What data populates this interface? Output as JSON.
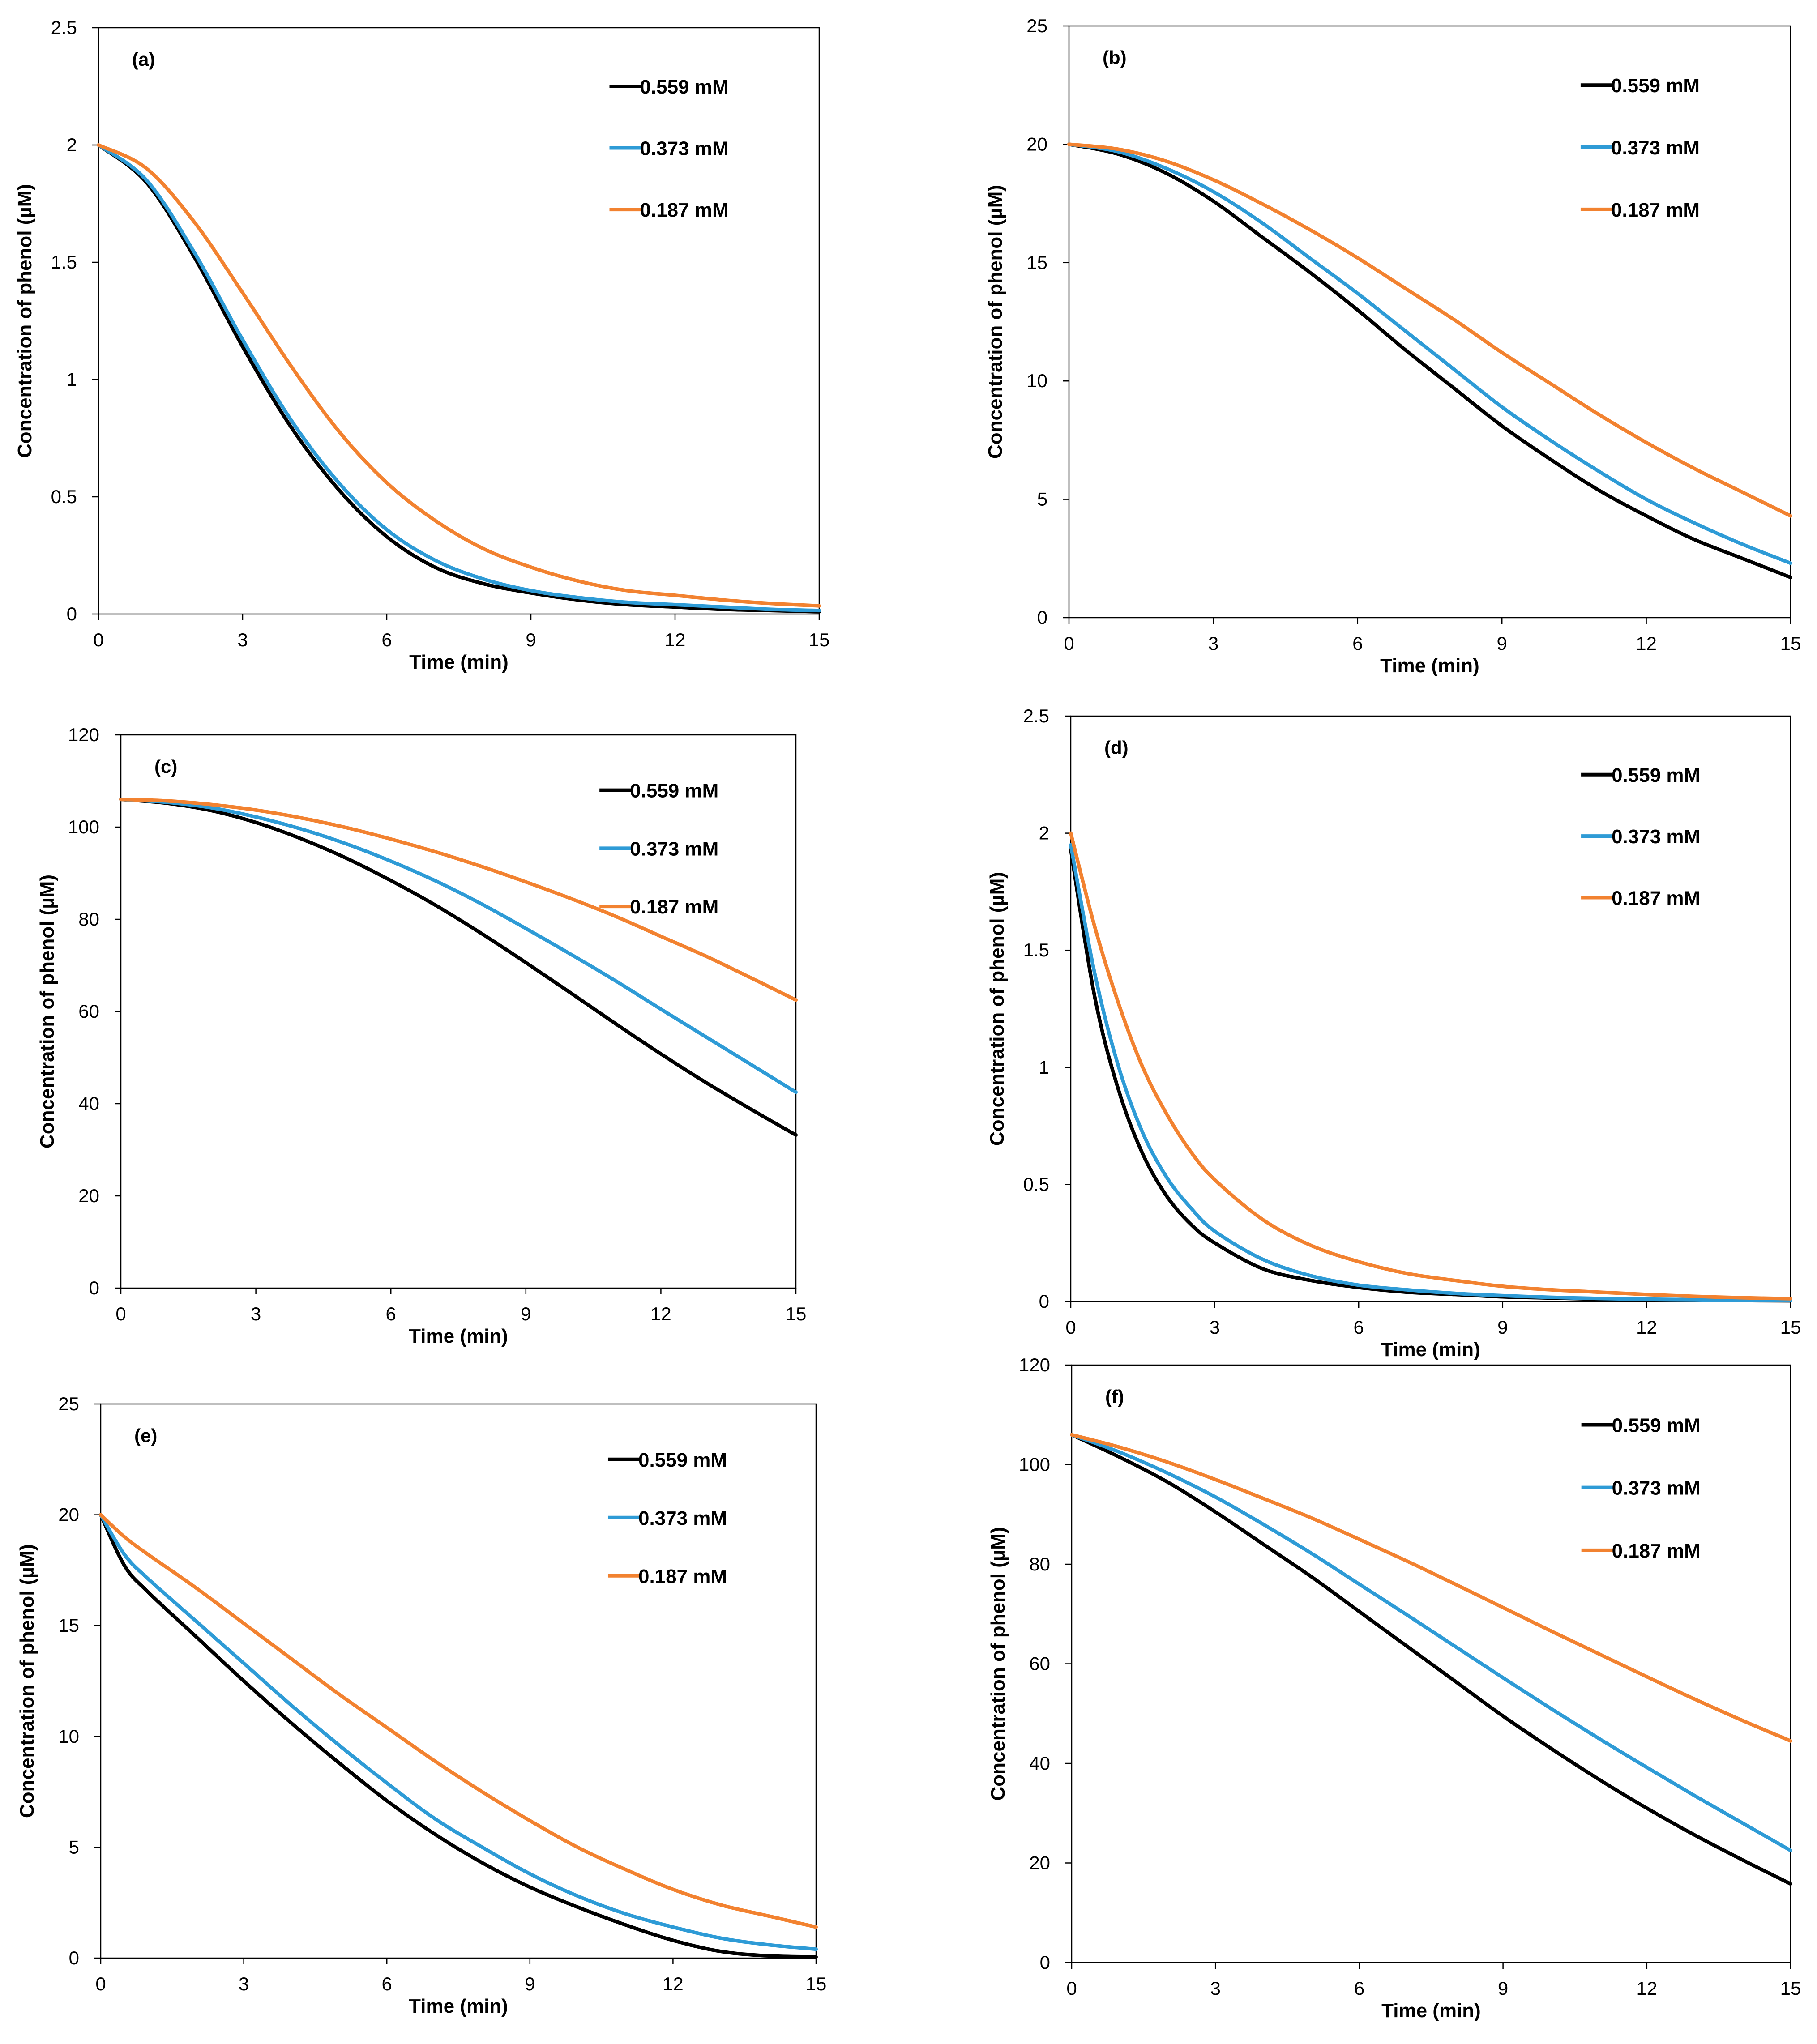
{
  "colors": {
    "black": "#000000",
    "blue": "#2E9BD6",
    "orange": "#F28230"
  },
  "chart_data": [
    {
      "type": "line",
      "panel_label": "(a)",
      "xlabel": "Time (min)",
      "ylabel": "Concentration of phenol (µM)",
      "xlim": [
        0,
        15
      ],
      "ylim": [
        0,
        2.5
      ],
      "xticks": [
        "0",
        "3",
        "6",
        "9",
        "12",
        "15"
      ],
      "yticks": [
        "0",
        "0.5",
        "1",
        "1.5",
        "2",
        "2.5"
      ],
      "legend_position": "top-right",
      "x": [
        0,
        1,
        2,
        3,
        4,
        5,
        6,
        7,
        8,
        9,
        10,
        11,
        12,
        13,
        14,
        15
      ],
      "series": [
        {
          "name": "0.559 mM",
          "color": "#000000",
          "values": [
            2.0,
            1.84,
            1.52,
            1.14,
            0.8,
            0.53,
            0.33,
            0.2,
            0.13,
            0.09,
            0.06,
            0.04,
            0.03,
            0.02,
            0.015,
            0.01
          ]
        },
        {
          "name": "0.373 mM",
          "color": "#2E9BD6",
          "values": [
            2.0,
            1.85,
            1.54,
            1.17,
            0.83,
            0.56,
            0.36,
            0.23,
            0.15,
            0.1,
            0.07,
            0.05,
            0.04,
            0.03,
            0.02,
            0.015
          ]
        },
        {
          "name": "0.187 mM",
          "color": "#F28230",
          "values": [
            2.0,
            1.9,
            1.67,
            1.37,
            1.06,
            0.78,
            0.56,
            0.4,
            0.28,
            0.2,
            0.14,
            0.1,
            0.08,
            0.06,
            0.045,
            0.035
          ]
        }
      ]
    },
    {
      "type": "line",
      "panel_label": "(b)",
      "xlabel": "Time (min)",
      "ylabel": "Concentration of phenol (µM)",
      "xlim": [
        0,
        15
      ],
      "ylim": [
        0,
        25
      ],
      "xticks": [
        "0",
        "3",
        "6",
        "9",
        "12",
        "15"
      ],
      "yticks": [
        "0",
        "5",
        "10",
        "15",
        "20",
        "25"
      ],
      "legend_position": "top-right",
      "x": [
        0,
        1,
        2,
        3,
        4,
        5,
        6,
        7,
        8,
        9,
        10,
        11,
        12,
        13,
        14,
        15
      ],
      "series": [
        {
          "name": "0.559 mM",
          "color": "#000000",
          "values": [
            20.0,
            19.6,
            18.8,
            17.6,
            16.1,
            14.6,
            13.0,
            11.3,
            9.7,
            8.1,
            6.7,
            5.4,
            4.3,
            3.3,
            2.5,
            1.7
          ]
        },
        {
          "name": "0.373 mM",
          "color": "#2E9BD6",
          "values": [
            20.0,
            19.7,
            19.0,
            18.0,
            16.7,
            15.2,
            13.7,
            12.1,
            10.5,
            8.9,
            7.5,
            6.2,
            5.0,
            4.0,
            3.1,
            2.3
          ]
        },
        {
          "name": "0.187 mM",
          "color": "#F28230",
          "values": [
            20.0,
            19.8,
            19.3,
            18.5,
            17.5,
            16.4,
            15.2,
            13.9,
            12.6,
            11.2,
            9.9,
            8.6,
            7.4,
            6.3,
            5.3,
            4.3
          ]
        }
      ]
    },
    {
      "type": "line",
      "panel_label": "(c)",
      "xlabel": "Time (min)",
      "ylabel": "Concentration of phenol (µM)",
      "xlim": [
        0,
        15
      ],
      "ylim": [
        0,
        120
      ],
      "xticks": [
        "0",
        "3",
        "6",
        "9",
        "12",
        "15"
      ],
      "yticks": [
        "0",
        "20",
        "40",
        "60",
        "80",
        "100",
        "120"
      ],
      "legend_position": "top-right",
      "x": [
        0,
        1,
        2,
        3,
        4,
        5,
        6,
        7,
        8,
        9,
        10,
        11,
        12,
        13,
        14,
        15
      ],
      "series": [
        {
          "name": "0.559 mM",
          "color": "#000000",
          "values": [
            106.0,
            105.2,
            103.6,
            101.0,
            97.5,
            93.3,
            88.4,
            83.0,
            77.0,
            70.6,
            64.0,
            57.3,
            50.8,
            44.6,
            38.8,
            33.2
          ]
        },
        {
          "name": "0.373 mM",
          "color": "#2E9BD6",
          "values": [
            106.0,
            105.4,
            104.2,
            102.2,
            99.6,
            96.4,
            92.6,
            88.3,
            83.4,
            78.0,
            72.4,
            66.6,
            60.5,
            54.5,
            48.5,
            42.5
          ]
        },
        {
          "name": "0.187 mM",
          "color": "#F28230",
          "values": [
            106.0,
            105.7,
            104.9,
            103.7,
            102.0,
            99.9,
            97.4,
            94.6,
            91.5,
            88.1,
            84.5,
            80.6,
            76.3,
            72.0,
            67.3,
            62.5
          ]
        }
      ]
    },
    {
      "type": "line",
      "panel_label": "(d)",
      "xlabel": "Time (min)",
      "ylabel": "Concentration of phenol (µM)",
      "xlim": [
        0,
        15
      ],
      "ylim": [
        0,
        2.5
      ],
      "xticks": [
        "0",
        "3",
        "6",
        "9",
        "12",
        "15"
      ],
      "yticks": [
        "0",
        "0.5",
        "1",
        "1.5",
        "2",
        "2.5"
      ],
      "legend_position": "top-right",
      "x": [
        0,
        0.5,
        1,
        1.5,
        2,
        2.5,
        3,
        4,
        5,
        6,
        7,
        8,
        9,
        10,
        11,
        12,
        13,
        14,
        15
      ],
      "series": [
        {
          "name": "0.559 mM",
          "color": "#000000",
          "values": [
            1.93,
            1.3,
            0.9,
            0.63,
            0.45,
            0.33,
            0.25,
            0.14,
            0.09,
            0.06,
            0.04,
            0.03,
            0.02,
            0.015,
            0.01,
            0.007,
            0.005,
            0.004,
            0.003
          ]
        },
        {
          "name": "0.373 mM",
          "color": "#2E9BD6",
          "values": [
            1.95,
            1.4,
            1.0,
            0.72,
            0.53,
            0.4,
            0.3,
            0.18,
            0.11,
            0.07,
            0.05,
            0.035,
            0.025,
            0.018,
            0.013,
            0.01,
            0.008,
            0.006,
            0.005
          ]
        },
        {
          "name": "0.187 mM",
          "color": "#F28230",
          "values": [
            2.0,
            1.6,
            1.27,
            1.0,
            0.8,
            0.64,
            0.52,
            0.35,
            0.24,
            0.17,
            0.12,
            0.09,
            0.065,
            0.05,
            0.04,
            0.03,
            0.022,
            0.016,
            0.012
          ]
        }
      ]
    },
    {
      "type": "line",
      "panel_label": "(e)",
      "xlabel": "Time (min)",
      "ylabel": "Concentration of phenol (µM)",
      "xlim": [
        0,
        15
      ],
      "ylim": [
        0,
        25
      ],
      "xticks": [
        "0",
        "3",
        "6",
        "9",
        "12",
        "15"
      ],
      "yticks": [
        "0",
        "5",
        "10",
        "15",
        "20",
        "25"
      ],
      "legend_position": "top-right",
      "x": [
        0,
        0.5,
        1,
        2,
        3,
        4,
        5,
        6,
        7,
        8,
        9,
        10,
        11,
        12,
        13,
        14,
        15
      ],
      "series": [
        {
          "name": "0.559 mM",
          "color": "#000000",
          "values": [
            20.0,
            17.7,
            16.5,
            14.5,
            12.5,
            10.6,
            8.8,
            7.1,
            5.6,
            4.3,
            3.2,
            2.3,
            1.5,
            0.8,
            0.3,
            0.1,
            0.05
          ]
        },
        {
          "name": "0.373 mM",
          "color": "#2E9BD6",
          "values": [
            20.0,
            18.2,
            17.1,
            15.2,
            13.3,
            11.4,
            9.6,
            7.9,
            6.3,
            5.0,
            3.8,
            2.8,
            2.0,
            1.4,
            0.9,
            0.6,
            0.4
          ]
        },
        {
          "name": "0.187 mM",
          "color": "#F28230",
          "values": [
            20.0,
            19.0,
            18.2,
            16.7,
            15.1,
            13.5,
            11.9,
            10.4,
            8.9,
            7.5,
            6.2,
            5.0,
            4.0,
            3.1,
            2.4,
            1.9,
            1.4
          ]
        }
      ]
    },
    {
      "type": "line",
      "panel_label": "(f)",
      "xlabel": "Time (min)",
      "ylabel": "Concentration of phenol (µM)",
      "xlim": [
        0,
        15
      ],
      "ylim": [
        0,
        120
      ],
      "xticks": [
        "0",
        "3",
        "6",
        "9",
        "12",
        "15"
      ],
      "yticks": [
        "0",
        "20",
        "40",
        "60",
        "80",
        "100",
        "120"
      ],
      "legend_position": "top-right",
      "x": [
        0,
        1,
        2,
        3,
        4,
        5,
        6,
        7,
        8,
        9,
        10,
        11,
        12,
        13,
        14,
        15
      ],
      "series": [
        {
          "name": "0.559 mM",
          "color": "#000000",
          "values": [
            106.0,
            101.5,
            96.5,
            90.5,
            84.0,
            77.5,
            70.5,
            63.5,
            56.5,
            49.5,
            43.0,
            36.8,
            31.0,
            25.6,
            20.6,
            15.8
          ]
        },
        {
          "name": "0.373 mM",
          "color": "#2E9BD6",
          "values": [
            106.0,
            102.5,
            98.3,
            93.5,
            88.0,
            82.2,
            76.0,
            69.8,
            63.5,
            57.2,
            51.0,
            45.0,
            39.2,
            33.5,
            28.0,
            22.5
          ]
        },
        {
          "name": "0.187 mM",
          "color": "#F28230",
          "values": [
            106.0,
            103.5,
            100.5,
            97.0,
            93.2,
            89.3,
            85.0,
            80.6,
            76.0,
            71.3,
            66.6,
            62.0,
            57.4,
            52.9,
            48.6,
            44.5
          ]
        }
      ]
    }
  ]
}
